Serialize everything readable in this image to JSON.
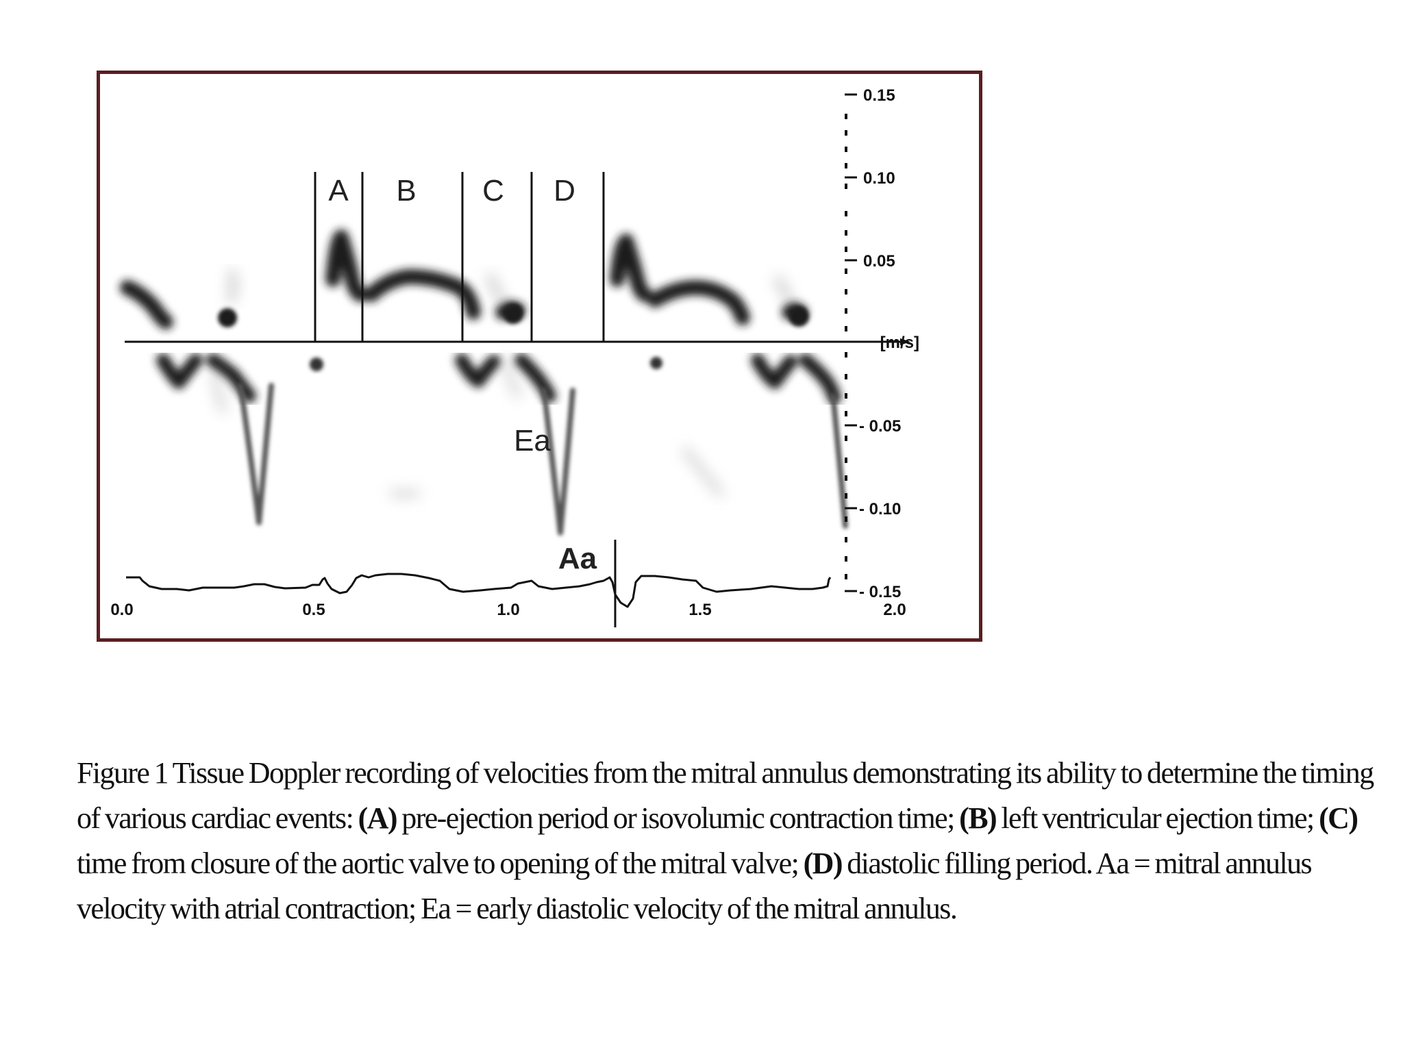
{
  "figure": {
    "interval_labels": [
      "A",
      "B",
      "C",
      "D"
    ],
    "wave_labels": {
      "ea": "Ea",
      "aa": "Aa"
    },
    "y_axis": {
      "unit": "[m/s]",
      "ticks": [
        "0.15",
        "0.10",
        "0.05",
        "- 0.05",
        "- 0.10",
        "- 0.15"
      ]
    },
    "x_axis": {
      "ticks": [
        "0.0",
        "0.5",
        "1.0",
        "1.5",
        "2.0"
      ]
    },
    "colors": {
      "frame": "#5a1e22",
      "trace": "#111111"
    }
  },
  "caption": {
    "lead": "Figure 1 Tissue Doppler recording of velocities from the mitral annulus demonstrating its ability to determine the timing of various cardiac events: ",
    "a_label": "(A)",
    "a_text": " pre-ejection period or isovolumic contraction time; ",
    "b_label": "(B)",
    "b_text": " left ventricular ejection time; ",
    "c_label": "(C)",
    "c_text": " time from closure of the aortic valve to opening of the mitral valve; ",
    "d_label": "(D)",
    "d_text": " diastolic filling period. Aa = mitral annulus velocity with atrial contraction; Ea = early diastolic velocity of the mitral annulus."
  }
}
